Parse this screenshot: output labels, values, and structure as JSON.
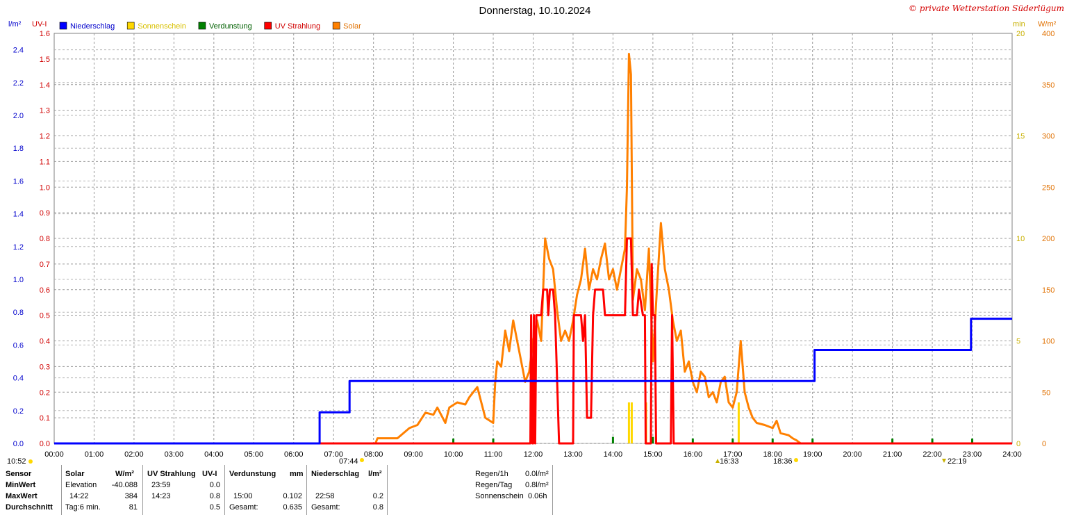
{
  "title": "Donnerstag, 10.10.2024",
  "copyright": "© private Wetterstation Süderlügum",
  "legend": [
    {
      "name": "Niederschlag",
      "color": "#0000ff",
      "text_color": "#0000cc"
    },
    {
      "name": "Sonnenschein",
      "color": "#ffd800",
      "text_color": "#d8c000"
    },
    {
      "name": "Verdunstung",
      "color": "#008000",
      "text_color": "#006000"
    },
    {
      "name": "UV Strahlung",
      "color": "#ff0000",
      "text_color": "#d00000"
    },
    {
      "name": "Solar",
      "color": "#ff8000",
      "text_color": "#e07000"
    }
  ],
  "axis_units": {
    "rain": "l/m²",
    "uv": "UV-I",
    "sun": "min",
    "solar": "W/m²"
  },
  "sun_markers": {
    "sunrise": "07:44",
    "sunset": "18:36",
    "moon1": "16:33",
    "moon2": "22:19",
    "left": "10:52"
  },
  "chart_data": {
    "type": "line",
    "x_ticks": [
      "00:00",
      "01:00",
      "02:00",
      "03:00",
      "04:00",
      "05:00",
      "06:00",
      "07:00",
      "08:00",
      "09:00",
      "10:00",
      "11:00",
      "12:00",
      "13:00",
      "14:00",
      "15:00",
      "16:00",
      "17:00",
      "18:00",
      "19:00",
      "20:00",
      "21:00",
      "22:00",
      "23:00",
      "24:00"
    ],
    "axes": {
      "rain": {
        "label": "l/m²",
        "range": [
          0,
          2.5
        ],
        "ticks": [
          "0.0",
          "0.2",
          "0.4",
          "0.6",
          "0.8",
          "1.0",
          "1.2",
          "1.4",
          "1.6",
          "1.8",
          "2.0",
          "2.2",
          "2.4"
        ]
      },
      "uv": {
        "label": "UV-I",
        "range": [
          0,
          1.6
        ],
        "ticks": [
          "0.0",
          "0.1",
          "0.2",
          "0.3",
          "0.4",
          "0.5",
          "0.6",
          "0.7",
          "0.8",
          "0.9",
          "1.0",
          "1.1",
          "1.2",
          "1.3",
          "1.4",
          "1.5",
          "1.6"
        ]
      },
      "sun": {
        "label": "min",
        "range": [
          0,
          20
        ],
        "ticks": [
          "0",
          "5",
          "10",
          "15",
          "20"
        ]
      },
      "solar": {
        "label": "W/m²",
        "range": [
          0,
          400
        ],
        "ticks": [
          "0",
          "50",
          "100",
          "150",
          "200",
          "250",
          "300",
          "350",
          "400"
        ]
      }
    },
    "grid": true,
    "series": [
      {
        "name": "Niederschlag",
        "axis": "rain",
        "color": "#0000ff",
        "step": true,
        "points": [
          [
            0,
            0
          ],
          [
            6.65,
            0
          ],
          [
            6.65,
            0.19
          ],
          [
            7.4,
            0.19
          ],
          [
            7.4,
            0.38
          ],
          [
            19.05,
            0.38
          ],
          [
            19.05,
            0.57
          ],
          [
            22.97,
            0.57
          ],
          [
            22.97,
            0.76
          ],
          [
            24,
            0.76
          ]
        ]
      },
      {
        "name": "UV Strahlung",
        "axis": "uv",
        "color": "#ff0000",
        "points": [
          [
            0,
            0
          ],
          [
            11.93,
            0
          ],
          [
            11.95,
            0.5
          ],
          [
            11.98,
            0
          ],
          [
            12.0,
            0
          ],
          [
            12.02,
            0.5
          ],
          [
            12.05,
            0
          ],
          [
            12.08,
            0.5
          ],
          [
            12.2,
            0.5
          ],
          [
            12.25,
            0.6
          ],
          [
            12.35,
            0.6
          ],
          [
            12.38,
            0.5
          ],
          [
            12.42,
            0.6
          ],
          [
            12.5,
            0.6
          ],
          [
            12.55,
            0.5
          ],
          [
            12.65,
            0
          ],
          [
            13.0,
            0
          ],
          [
            13.02,
            0.5
          ],
          [
            13.2,
            0.5
          ],
          [
            13.25,
            0.4
          ],
          [
            13.3,
            0.5
          ],
          [
            13.35,
            0.1
          ],
          [
            13.45,
            0.1
          ],
          [
            13.5,
            0.5
          ],
          [
            13.55,
            0.6
          ],
          [
            13.75,
            0.6
          ],
          [
            13.8,
            0.5
          ],
          [
            14.3,
            0.5
          ],
          [
            14.35,
            0.8
          ],
          [
            14.45,
            0.8
          ],
          [
            14.5,
            0.5
          ],
          [
            14.6,
            0.5
          ],
          [
            14.65,
            0.6
          ],
          [
            14.75,
            0.5
          ],
          [
            14.8,
            0.5
          ],
          [
            14.82,
            0
          ],
          [
            14.95,
            0
          ],
          [
            14.97,
            0.7
          ],
          [
            15.0,
            0.5
          ],
          [
            15.05,
            0.5
          ],
          [
            15.08,
            0
          ],
          [
            15.45,
            0
          ],
          [
            15.48,
            0.5
          ],
          [
            15.52,
            0
          ],
          [
            24,
            0
          ]
        ]
      },
      {
        "name": "Solar",
        "axis": "solar",
        "color": "#ff8000",
        "points": [
          [
            0,
            0
          ],
          [
            8.05,
            0
          ],
          [
            8.1,
            5
          ],
          [
            8.6,
            5
          ],
          [
            8.9,
            15
          ],
          [
            9.1,
            18
          ],
          [
            9.3,
            30
          ],
          [
            9.5,
            28
          ],
          [
            9.6,
            35
          ],
          [
            9.8,
            20
          ],
          [
            9.9,
            35
          ],
          [
            10.1,
            40
          ],
          [
            10.3,
            38
          ],
          [
            10.4,
            45
          ],
          [
            10.6,
            55
          ],
          [
            10.8,
            25
          ],
          [
            11.0,
            20
          ],
          [
            11.05,
            60
          ],
          [
            11.1,
            80
          ],
          [
            11.2,
            75
          ],
          [
            11.3,
            110
          ],
          [
            11.4,
            90
          ],
          [
            11.5,
            120
          ],
          [
            11.6,
            100
          ],
          [
            11.7,
            80
          ],
          [
            11.8,
            60
          ],
          [
            11.9,
            70
          ],
          [
            12.0,
            100
          ],
          [
            12.1,
            120
          ],
          [
            12.2,
            100
          ],
          [
            12.25,
            150
          ],
          [
            12.3,
            200
          ],
          [
            12.4,
            180
          ],
          [
            12.5,
            170
          ],
          [
            12.6,
            130
          ],
          [
            12.7,
            100
          ],
          [
            12.8,
            110
          ],
          [
            12.9,
            100
          ],
          [
            13.0,
            120
          ],
          [
            13.1,
            145
          ],
          [
            13.2,
            160
          ],
          [
            13.3,
            190
          ],
          [
            13.4,
            150
          ],
          [
            13.5,
            170
          ],
          [
            13.6,
            160
          ],
          [
            13.7,
            180
          ],
          [
            13.8,
            195
          ],
          [
            13.9,
            160
          ],
          [
            14.0,
            170
          ],
          [
            14.1,
            150
          ],
          [
            14.2,
            170
          ],
          [
            14.3,
            190
          ],
          [
            14.35,
            250
          ],
          [
            14.4,
            380
          ],
          [
            14.45,
            360
          ],
          [
            14.5,
            140
          ],
          [
            14.6,
            170
          ],
          [
            14.7,
            160
          ],
          [
            14.8,
            130
          ],
          [
            14.9,
            190
          ],
          [
            15.0,
            80
          ],
          [
            15.1,
            150
          ],
          [
            15.2,
            215
          ],
          [
            15.3,
            170
          ],
          [
            15.4,
            150
          ],
          [
            15.5,
            120
          ],
          [
            15.6,
            100
          ],
          [
            15.7,
            110
          ],
          [
            15.8,
            70
          ],
          [
            15.9,
            80
          ],
          [
            16.0,
            60
          ],
          [
            16.1,
            50
          ],
          [
            16.2,
            70
          ],
          [
            16.3,
            65
          ],
          [
            16.4,
            45
          ],
          [
            16.5,
            50
          ],
          [
            16.6,
            40
          ],
          [
            16.7,
            60
          ],
          [
            16.8,
            65
          ],
          [
            16.9,
            40
          ],
          [
            17.0,
            35
          ],
          [
            17.1,
            50
          ],
          [
            17.2,
            100
          ],
          [
            17.3,
            50
          ],
          [
            17.4,
            35
          ],
          [
            17.5,
            25
          ],
          [
            17.6,
            20
          ],
          [
            17.8,
            18
          ],
          [
            18.0,
            15
          ],
          [
            18.1,
            22
          ],
          [
            18.2,
            10
          ],
          [
            18.4,
            8
          ],
          [
            18.5,
            5
          ],
          [
            18.6,
            3
          ],
          [
            18.7,
            0
          ],
          [
            24,
            0
          ]
        ]
      }
    ],
    "bars": [
      {
        "name": "Sonnenschein",
        "axis": "sun",
        "color": "#ffd800",
        "points": [
          [
            14.4,
            2
          ],
          [
            14.47,
            2
          ],
          [
            14.83,
            2
          ],
          [
            17.15,
            2
          ]
        ]
      },
      {
        "name": "Verdunstung",
        "axis": "rain",
        "color": "#008000",
        "points": [
          [
            10,
            0.01
          ],
          [
            11,
            0.01
          ],
          [
            12,
            0.02
          ],
          [
            13,
            0.03
          ],
          [
            14,
            0.04
          ],
          [
            15,
            0.04
          ],
          [
            16,
            0.03
          ],
          [
            17,
            0.02
          ],
          [
            18,
            0.01
          ],
          [
            19,
            0.01
          ],
          [
            21,
            0.01
          ],
          [
            22,
            0.01
          ],
          [
            23,
            0.01
          ]
        ]
      }
    ]
  },
  "stats": {
    "headers": {
      "sensor": "Sensor",
      "solar": "Solar",
      "solar_unit": "W/m²",
      "uv": "UV Strahlung",
      "uv_unit": "UV-I",
      "evap": "Verdunstung",
      "evap_unit": "mm",
      "rain": "Niederschlag",
      "rain_unit": "l/m²"
    },
    "rows": [
      {
        "label": "MinWert",
        "solar_time": "Elevation",
        "solar_val": "-40.088",
        "uv_time": "23:59",
        "uv_val": "0.0",
        "evap_time": "",
        "evap_val": "",
        "rain_time": "",
        "rain_val": ""
      },
      {
        "label": "MaxWert",
        "solar_time": "14:22",
        "solar_val": "384",
        "uv_time": "14:23",
        "uv_val": "0.8",
        "evap_time": "15:00",
        "evap_val": "0.102",
        "rain_time": "22:58",
        "rain_val": "0.2"
      },
      {
        "label": "Durchschnitt",
        "solar_time": "Tag:6 min.",
        "solar_val": "81",
        "uv_time": "",
        "uv_val": "0.5",
        "evap_time": "Gesamt:",
        "evap_val": "0.635",
        "rain_time": "Gesamt:",
        "rain_val": "0.8"
      }
    ],
    "summary": [
      {
        "label": "Regen/1h",
        "value": "0.0l/m²"
      },
      {
        "label": "Regen/Tag",
        "value": "0.8l/m²"
      },
      {
        "label": "Sonnenschein",
        "value": "0.06h"
      }
    ]
  }
}
